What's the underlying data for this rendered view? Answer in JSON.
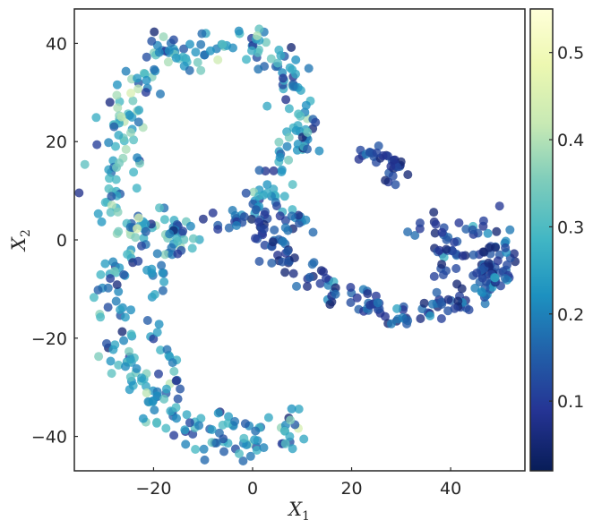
{
  "chart_data": {
    "type": "scatter",
    "title": "",
    "xlabel": {
      "main": "X",
      "sub": "1"
    },
    "ylabel": {
      "main": "X",
      "sub": "2"
    },
    "xlim": [
      -36,
      55
    ],
    "ylim": [
      -47,
      47
    ],
    "xticks": [
      -20,
      0,
      20,
      40
    ],
    "yticks": [
      -40,
      -20,
      0,
      20,
      40
    ],
    "xtick_labels": [
      "−20",
      "0",
      "20",
      "40"
    ],
    "ytick_labels": [
      "−40",
      "−20",
      "0",
      "20",
      "40"
    ],
    "grid": false,
    "colormap": "YlGnBu",
    "colorbar": {
      "range": [
        0.02,
        0.55
      ],
      "ticks": [
        0.1,
        0.2,
        0.3,
        0.4,
        0.5
      ],
      "tick_labels": [
        "0.1",
        "0.2",
        "0.3",
        "0.4",
        "0.5"
      ]
    },
    "point_color_value_range": [
      0.05,
      0.45
    ],
    "clusters": [
      {
        "name": "top-arc",
        "path": [
          [
            -18,
            38
          ],
          [
            -12,
            39
          ],
          [
            -5,
            40
          ],
          [
            0,
            40
          ],
          [
            4,
            37
          ],
          [
            8,
            32
          ],
          [
            11,
            27
          ],
          [
            10,
            21
          ],
          [
            6,
            15
          ],
          [
            2,
            9
          ],
          [
            0,
            5
          ]
        ],
        "spread": 2.0,
        "count": 140,
        "value_mean": 0.24,
        "value_spread": 0.09
      },
      {
        "name": "left-upper-arc",
        "path": [
          [
            -18,
            38
          ],
          [
            -23,
            33
          ],
          [
            -25,
            27
          ],
          [
            -26,
            20
          ],
          [
            -27,
            14
          ],
          [
            -28,
            8
          ],
          [
            -27,
            4
          ],
          [
            -22,
            1
          ],
          [
            -16,
            2
          ],
          [
            -11,
            2
          ]
        ],
        "spread": 2.2,
        "count": 130,
        "value_mean": 0.27,
        "value_spread": 0.09
      },
      {
        "name": "left-lower-arc",
        "path": [
          [
            -22,
            -1
          ],
          [
            -26,
            -5
          ],
          [
            -30,
            -10
          ],
          [
            -28,
            -18
          ],
          [
            -26,
            -25
          ],
          [
            -22,
            -30
          ],
          [
            -18,
            -35
          ],
          [
            -14,
            -38
          ],
          [
            -8,
            -40
          ],
          [
            -3,
            -41
          ],
          [
            2,
            -41
          ],
          [
            6,
            -39
          ],
          [
            8,
            -37
          ]
        ],
        "spread": 2.2,
        "count": 150,
        "value_mean": 0.22,
        "value_spread": 0.09
      },
      {
        "name": "left-inner-arm",
        "path": [
          [
            -13,
            1
          ],
          [
            -17,
            -3
          ],
          [
            -19,
            -8
          ],
          [
            -20,
            -15
          ],
          [
            -19,
            -22
          ],
          [
            -18,
            -28
          ],
          [
            -16,
            -32
          ]
        ],
        "spread": 1.6,
        "count": 45,
        "value_mean": 0.2,
        "value_spread": 0.08
      },
      {
        "name": "center-hub",
        "path": [
          [
            -9,
            4
          ],
          [
            -5,
            4
          ],
          [
            -1,
            4
          ],
          [
            3,
            5
          ],
          [
            7,
            4
          ],
          [
            11,
            5
          ]
        ],
        "spread": 1.4,
        "count": 40,
        "value_mean": 0.14,
        "value_spread": 0.06
      },
      {
        "name": "lower-right-arm",
        "path": [
          [
            2,
            2
          ],
          [
            6,
            -3
          ],
          [
            11,
            -7
          ],
          [
            16,
            -10
          ],
          [
            21,
            -12
          ],
          [
            26,
            -14
          ],
          [
            31,
            -15
          ],
          [
            36,
            -14
          ],
          [
            40,
            -13
          ],
          [
            44,
            -12
          ],
          [
            48,
            -10
          ],
          [
            50,
            -5
          ],
          [
            49,
            0
          ]
        ],
        "spread": 1.5,
        "count": 150,
        "value_mean": 0.12,
        "value_spread": 0.06
      },
      {
        "name": "right-cluster",
        "path": [
          [
            33,
            3
          ],
          [
            37,
            1
          ],
          [
            41,
            -1
          ],
          [
            45,
            1
          ],
          [
            49,
            2
          ],
          [
            51,
            -3
          ],
          [
            52,
            -8
          ],
          [
            47,
            -6
          ],
          [
            41,
            -4
          ],
          [
            36,
            -3
          ]
        ],
        "spread": 2.0,
        "count": 75,
        "value_mean": 0.12,
        "value_spread": 0.05
      },
      {
        "name": "upper-right-island",
        "path": [
          [
            22,
            18
          ],
          [
            25,
            17
          ],
          [
            28,
            17
          ],
          [
            29,
            14
          ],
          [
            28,
            11
          ]
        ],
        "spread": 1.0,
        "count": 32,
        "value_mean": 0.1,
        "value_spread": 0.04
      }
    ]
  }
}
